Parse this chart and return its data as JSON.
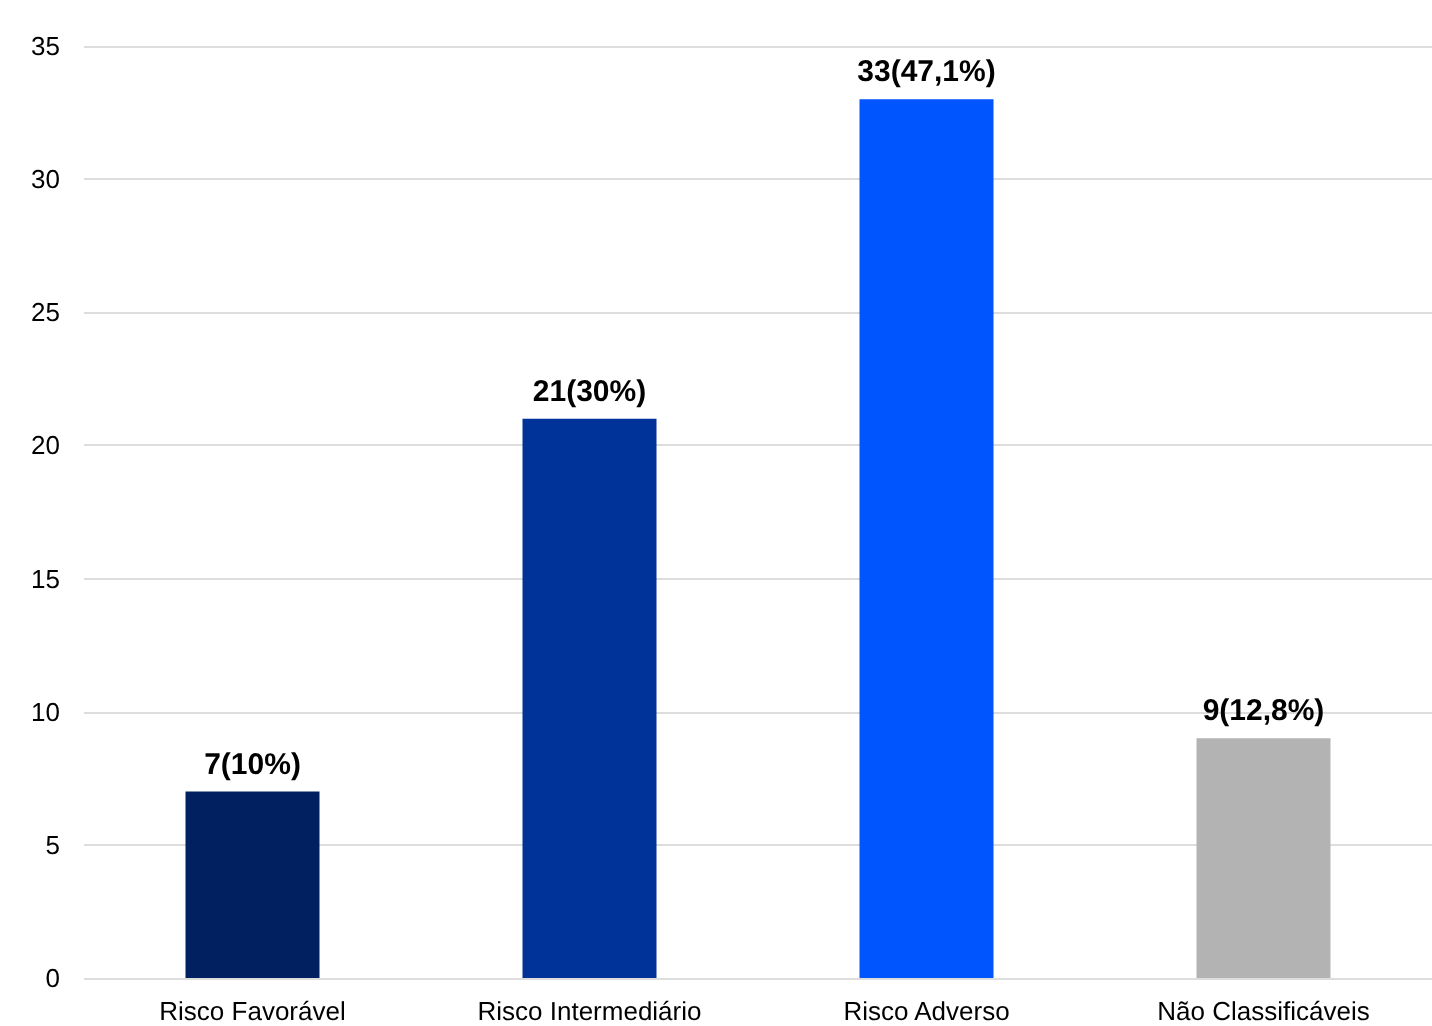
{
  "chart_data": {
    "type": "bar",
    "categories": [
      "Risco Favorável",
      "Risco Intermediário",
      "Risco Adverso",
      "Não Classificáveis"
    ],
    "values": [
      7,
      21,
      33,
      9
    ],
    "colors": [
      "#002060",
      "#003399",
      "#0055ff",
      "#b3b3b3"
    ],
    "value_labels": [
      "7(10%)",
      "21(30%)",
      "33(47,1%)",
      "9(12,8%)"
    ],
    "ylim": [
      0,
      35
    ],
    "yticks": [
      0,
      5,
      10,
      15,
      20,
      25,
      30,
      35
    ],
    "grid": "y"
  }
}
